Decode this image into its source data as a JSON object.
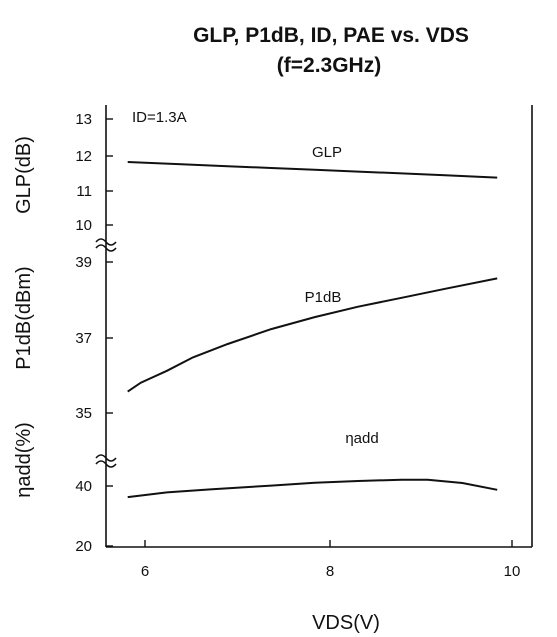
{
  "chart_data": {
    "type": "line",
    "title": "GLP, P1dB, ID, PAE vs. VDS",
    "subtitle": "(f=2.3GHz)",
    "xlabel": "VDS(V)",
    "x_ticks": [
      "6",
      "8",
      "10"
    ],
    "xlim": [
      5.6,
      10.5
    ],
    "grid": false,
    "legend": "none",
    "annotation": "ID=1.3A",
    "panels": [
      {
        "ylabel": "GLP(dB)",
        "ylim": [
          9.6,
          13.5
        ],
        "y_ticks": [
          "10",
          "11",
          "12",
          "13"
        ],
        "series": [
          {
            "label": "GLP",
            "x": [
              5.85,
              6.5,
              7.0,
              7.5,
              8.0,
              8.5,
              9.0,
              9.5,
              10.1
            ],
            "y": [
              12.0,
              11.92,
              11.86,
              11.8,
              11.74,
              11.68,
              11.62,
              11.56,
              11.48
            ]
          }
        ]
      },
      {
        "ylabel": "P1dB(dBm)",
        "ylim": [
          34.2,
          39.3
        ],
        "y_ticks": [
          "35",
          "37",
          "39"
        ],
        "series": [
          {
            "label": "P1dB",
            "x": [
              5.85,
              6.0,
              6.3,
              6.6,
              7.0,
              7.5,
              8.0,
              8.5,
              9.0,
              9.5,
              10.1
            ],
            "y": [
              34.95,
              35.25,
              35.65,
              36.1,
              36.55,
              37.05,
              37.45,
              37.8,
              38.1,
              38.4,
              38.75
            ]
          }
        ]
      },
      {
        "ylabel": "ηadd(%)",
        "ylim": [
          16,
          51
        ],
        "y_ticks": [
          "20",
          "40"
        ],
        "series": [
          {
            "label": "ηadd",
            "x": [
              5.85,
              6.3,
              6.8,
              7.5,
              8.0,
              8.5,
              9.0,
              9.3,
              9.7,
              10.1
            ],
            "y": [
              38.7,
              40.8,
              42.2,
              43.9,
              45.2,
              46.0,
              46.6,
              46.6,
              45.1,
              42.0
            ]
          }
        ]
      }
    ]
  }
}
